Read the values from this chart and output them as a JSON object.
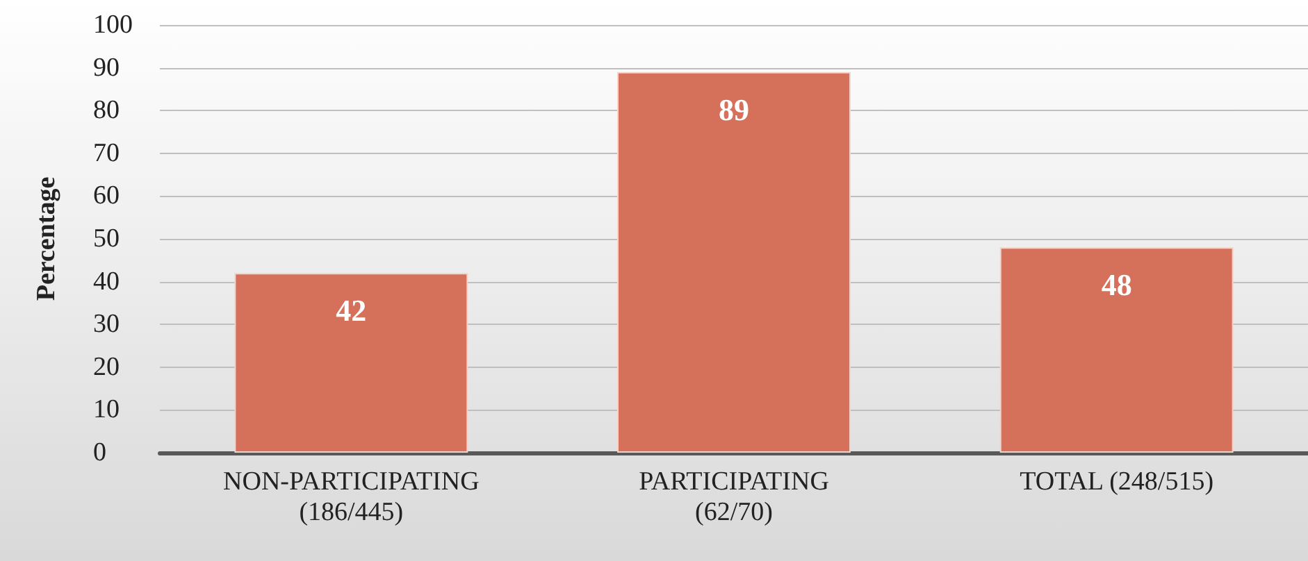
{
  "chart_data": {
    "type": "bar",
    "ylabel": "Percentage",
    "categories": [
      "NON-PARTICIPATING (186/445)",
      "PARTICIPATING (62/70)",
      "TOTAL (248/515)"
    ],
    "values": [
      42,
      89,
      48
    ],
    "color": "#d5705b",
    "data_labels": true,
    "ylim": [
      0,
      100
    ],
    "yticks": [
      0,
      10,
      20,
      30,
      40,
      50,
      60,
      70,
      80,
      90,
      100
    ],
    "grid": "y"
  }
}
